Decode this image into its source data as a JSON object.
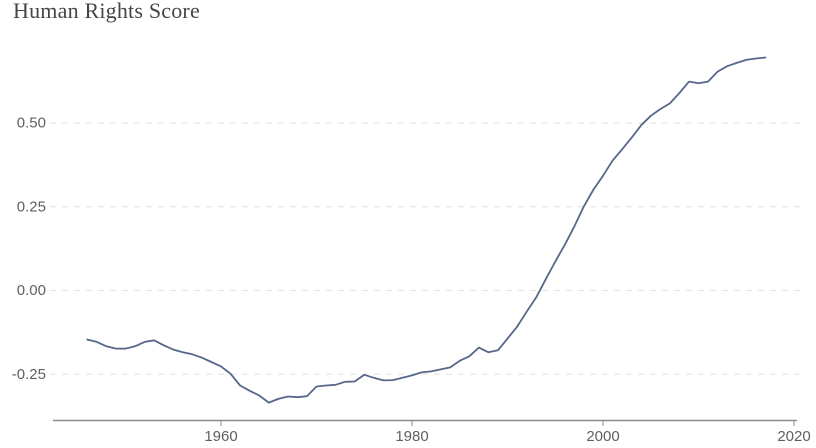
{
  "header": {
    "title": "Human Rights Score"
  },
  "chart_data": {
    "type": "line",
    "title": "Human Rights Score",
    "xlabel": "",
    "ylabel": "",
    "legend": "none",
    "grid": "horizontal-dashed",
    "xlim": [
      1942.5,
      2020.5
    ],
    "ylim": [
      -0.4,
      0.8
    ],
    "x_ticks": [
      1960,
      1980,
      2000,
      2020
    ],
    "y_ticks": [
      {
        "value": 0.5,
        "label": "0.50"
      },
      {
        "value": 0.25,
        "label": "0.25"
      },
      {
        "value": 0.0,
        "label": "0.00"
      },
      {
        "value": -0.25,
        "label": "-0.25"
      }
    ],
    "x": [
      1946,
      1947,
      1948,
      1949,
      1950,
      1951,
      1952,
      1953,
      1954,
      1955,
      1956,
      1957,
      1958,
      1959,
      1960,
      1961,
      1962,
      1963,
      1964,
      1965,
      1966,
      1967,
      1968,
      1969,
      1970,
      1971,
      1972,
      1973,
      1974,
      1975,
      1976,
      1977,
      1978,
      1979,
      1980,
      1981,
      1982,
      1983,
      1984,
      1985,
      1986,
      1987,
      1988,
      1989,
      1990,
      1991,
      1992,
      1993,
      1994,
      1995,
      1996,
      1997,
      1998,
      1999,
      2000,
      2001,
      2002,
      2003,
      2004,
      2005,
      2006,
      2007,
      2008,
      2009,
      2010,
      2011,
      2012,
      2013,
      2014,
      2015,
      2016,
      2017
    ],
    "series": [
      {
        "name": "Human Rights Score",
        "values": [
          -0.148,
          -0.155,
          -0.168,
          -0.175,
          -0.175,
          -0.168,
          -0.155,
          -0.15,
          -0.165,
          -0.178,
          -0.186,
          -0.192,
          -0.202,
          -0.215,
          -0.228,
          -0.25,
          -0.285,
          -0.301,
          -0.315,
          -0.336,
          -0.325,
          -0.318,
          -0.32,
          -0.317,
          -0.288,
          -0.285,
          -0.283,
          -0.274,
          -0.273,
          -0.253,
          -0.262,
          -0.27,
          -0.269,
          -0.262,
          -0.255,
          -0.246,
          -0.243,
          -0.237,
          -0.231,
          -0.211,
          -0.198,
          -0.172,
          -0.186,
          -0.18,
          -0.145,
          -0.11,
          -0.065,
          -0.022,
          0.032,
          0.085,
          0.135,
          0.19,
          0.25,
          0.3,
          0.341,
          0.386,
          0.42,
          0.455,
          0.492,
          0.52,
          0.54,
          0.557,
          0.588,
          0.622,
          0.617,
          0.622,
          0.652,
          0.668,
          0.678,
          0.687,
          0.691,
          0.694
        ]
      }
    ],
    "colors": {
      "line": "#56678a",
      "grid": "#e0e0e0",
      "axis": "#8b8b8b",
      "tick_text": "#5f5f5f",
      "title_text": "#454545"
    }
  }
}
